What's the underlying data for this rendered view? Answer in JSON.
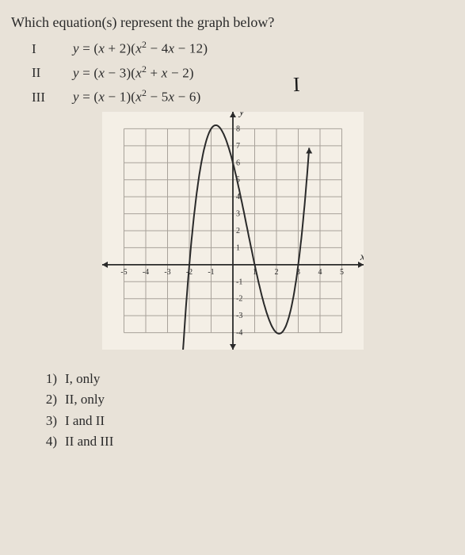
{
  "question": "Which equation(s) represent the graph below?",
  "equations": [
    {
      "label": "I",
      "latex": "y = (x + 2)(x² − 4x − 12)"
    },
    {
      "label": "II",
      "latex": "y = (x − 3)(x² + x − 2)"
    },
    {
      "label": "III",
      "latex": "y = (x − 1)(x² − 5x − 6)"
    }
  ],
  "handwritten_annotation": "I",
  "graph": {
    "type": "line",
    "background_color": "#f4efe6",
    "grid_color": "#a8a29a",
    "axis_color": "#2a2a2a",
    "curve_color": "#2a2a2a",
    "curve_width": 2,
    "xlim": [
      -6,
      6
    ],
    "ylim": [
      -5,
      9
    ],
    "xtick_step": 1,
    "ytick_step": 1,
    "xtick_labels_shown": [
      "-5",
      "-4",
      "-3",
      "-2",
      "-1",
      "1",
      "2",
      "3",
      "4",
      "5"
    ],
    "ytick_labels_shown": [
      "-4",
      "-3",
      "-2",
      "-1",
      "1",
      "2",
      "3",
      "4",
      "5",
      "6",
      "7",
      "8"
    ],
    "xlabel": "x",
    "ylabel": "y",
    "label_fontsize": 14,
    "tick_fontsize": 10,
    "roots": [
      -2,
      1,
      3
    ],
    "curve_points": [
      [
        -2.5,
        -8.0
      ],
      [
        -2.0,
        0.0
      ],
      [
        -1.5,
        5.6
      ],
      [
        -1.0,
        8.0
      ],
      [
        -0.5,
        7.9
      ],
      [
        0.0,
        6.0
      ],
      [
        0.5,
        3.1
      ],
      [
        1.0,
        0.0
      ],
      [
        1.5,
        -2.2
      ],
      [
        2.0,
        -3.0
      ],
      [
        2.5,
        -2.0
      ],
      [
        3.0,
        0.0
      ],
      [
        3.2,
        2.0
      ],
      [
        3.5,
        8.0
      ]
    ],
    "arrows": {
      "x_axis": "both",
      "y_axis": "both",
      "curve_ends": true
    }
  },
  "answers": [
    {
      "num": "1)",
      "text": "I, only"
    },
    {
      "num": "2)",
      "text": "II, only"
    },
    {
      "num": "3)",
      "text": "I and II"
    },
    {
      "num": "4)",
      "text": "II and III"
    }
  ],
  "colors": {
    "page_bg": "#e8e2d8",
    "text": "#2a2a2a"
  },
  "fonts": {
    "body_family": "Times New Roman",
    "body_size_pt": 13,
    "question_size_pt": 14,
    "handwritten_family": "cursive",
    "handwritten_size_pt": 20
  }
}
